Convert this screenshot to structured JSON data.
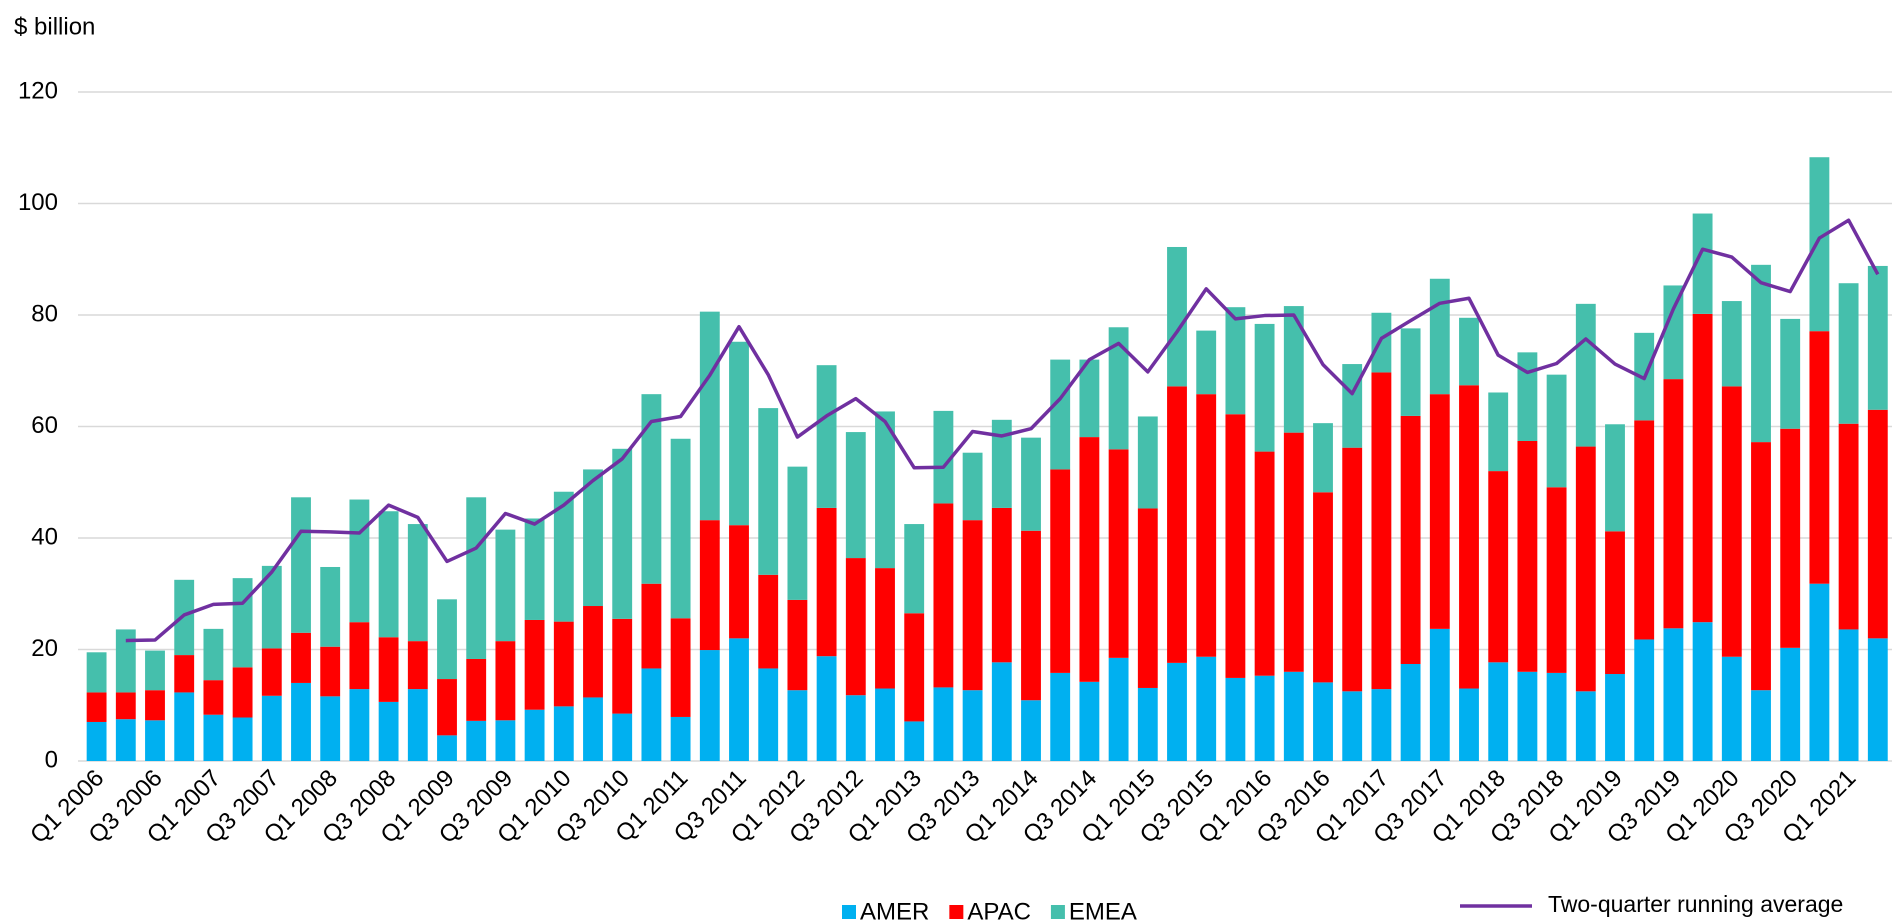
{
  "chart_data": {
    "type": "bar",
    "stacked": true,
    "ylabel": "$ billion",
    "categories": [
      "Q1 2006",
      null,
      "Q3 2006",
      null,
      "Q1 2007",
      null,
      "Q3 2007",
      null,
      "Q1 2008",
      null,
      "Q3 2008",
      null,
      "Q1 2009",
      null,
      "Q3 2009",
      null,
      "Q1 2010",
      null,
      "Q3 2010",
      null,
      "Q1 2011",
      null,
      "Q3 2011",
      null,
      "Q1 2012",
      null,
      "Q3 2012",
      null,
      "Q1 2013",
      null,
      "Q3 2013",
      null,
      "Q1 2014",
      null,
      "Q3 2014",
      null,
      "Q1 2015",
      null,
      "Q3 2015",
      null,
      "Q1 2016",
      null,
      "Q3 2016",
      null,
      "Q1 2017",
      null,
      "Q3 2017",
      null,
      "Q1 2018",
      null,
      "Q3 2018",
      null,
      "Q1 2019",
      null,
      "Q3 2019",
      null,
      "Q1 2020",
      null,
      "Q3 2020",
      null,
      "Q1 2021",
      null
    ],
    "series": [
      {
        "name": "AMER",
        "type": "bar",
        "color": "#00b0f0",
        "values": [
          7,
          7.5,
          7.3,
          12.3,
          8.3,
          7.8,
          11.7,
          14,
          11.6,
          12.9,
          10.6,
          12.9,
          4.6,
          7.2,
          7.3,
          9.2,
          9.8,
          11.4,
          8.5,
          16.6,
          7.9,
          19.9,
          22,
          16.6,
          12.7,
          18.8,
          11.8,
          13,
          7.1,
          13.2,
          12.7,
          17.7,
          10.9,
          15.8,
          14.2,
          18.5,
          13.1,
          17.6,
          18.7,
          14.9,
          15.3,
          16,
          14.1,
          12.5,
          12.9,
          17.4,
          23.7,
          13,
          17.7,
          16,
          15.8,
          12.5,
          15.6,
          21.8,
          23.8,
          24.9,
          18.7,
          12.7,
          20.3,
          31.8,
          23.6,
          22
        ]
      },
      {
        "name": "APAC",
        "type": "bar",
        "color": "#ff0000",
        "values": [
          5.3,
          4.8,
          5.4,
          6.7,
          6.2,
          9,
          8.5,
          9,
          8.9,
          12,
          11.6,
          8.6,
          10.1,
          11.1,
          14.2,
          16.1,
          15.2,
          16.4,
          17,
          15.2,
          17.7,
          23.3,
          20.3,
          16.8,
          16.2,
          26.6,
          24.6,
          21.6,
          19.4,
          33,
          30.5,
          27.7,
          30.4,
          36.5,
          43.9,
          37.4,
          32.2,
          49.6,
          47.1,
          47.3,
          40.2,
          42.9,
          34.1,
          43.7,
          56.8,
          44.5,
          42.1,
          54.4,
          34.3,
          41.4,
          33.3,
          43.9,
          25.6,
          39.3,
          44.7,
          55.3,
          48.5,
          44.5,
          39.3,
          45.3,
          36.9,
          41
        ]
      },
      {
        "name": "EMEA",
        "type": "bar",
        "color": "#45bfac",
        "values": [
          7.2,
          11.3,
          7.1,
          13.5,
          9.2,
          16,
          14.8,
          24.3,
          14.3,
          22,
          22.6,
          21,
          14.3,
          29,
          20,
          18.2,
          23.3,
          24.5,
          30.5,
          34,
          32.2,
          37.4,
          32.9,
          29.9,
          23.9,
          25.6,
          22.6,
          28.1,
          16,
          16.6,
          12.1,
          15.8,
          16.7,
          19.7,
          13.9,
          21.9,
          16.5,
          25,
          11.4,
          19.2,
          22.9,
          22.7,
          12.4,
          15,
          10.7,
          15.7,
          20.7,
          12.1,
          14.1,
          15.9,
          20.2,
          25.6,
          19.2,
          15.7,
          16.8,
          18,
          15.3,
          31.8,
          19.7,
          31.2,
          25.2,
          25.8
        ]
      },
      {
        "name": "Two-quarter running average",
        "type": "line",
        "color": "#7030a0",
        "values": [
          null,
          21.6,
          21.7,
          26.2,
          28.1,
          28.3,
          33.9,
          41.2,
          41.1,
          40.9,
          45.9,
          43.7,
          35.8,
          38.2,
          44.4,
          42.5,
          45.9,
          50.3,
          54.2,
          60.9,
          61.8,
          69.2,
          77.9,
          69.3,
          58.1,
          61.9,
          65,
          60.9,
          52.6,
          52.7,
          59.1,
          58.3,
          59.6,
          65,
          72,
          74.9,
          69.8,
          77,
          84.7,
          79.3,
          79.9,
          80,
          71.1,
          65.9,
          75.8,
          79,
          82.1,
          83,
          72.8,
          69.7,
          71.3,
          75.7,
          71.2,
          68.6,
          81.1,
          91.8,
          90.4,
          85.8,
          84.2,
          93.8,
          97,
          87.3
        ]
      }
    ],
    "ylim": [
      0,
      120
    ],
    "yticks": [
      0,
      20,
      40,
      60,
      80,
      100,
      120
    ],
    "grid": true
  }
}
